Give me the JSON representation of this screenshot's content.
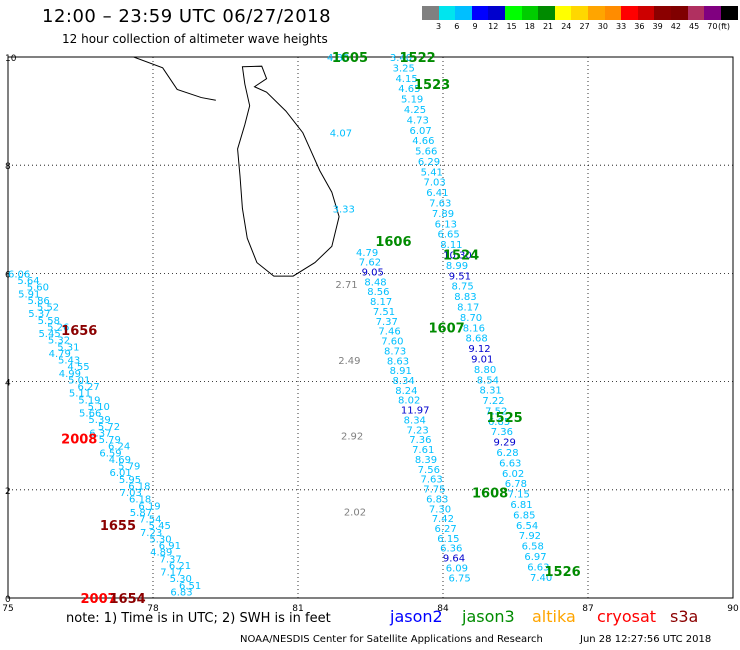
{
  "header": {
    "title": "12:00  –  23:59  UTC  06/27/2018",
    "subtitle": "12 hour collection of altimeter wave heights"
  },
  "color_legend": {
    "colors": [
      "#808080",
      "#00e5ee",
      "#00bfff",
      "#0000ff",
      "#0000cd",
      "#00ff00",
      "#00cd00",
      "#008b00",
      "#ffff00",
      "#ffd700",
      "#ffa500",
      "#ff8c00",
      "#ff0000",
      "#cd0000",
      "#8b0000",
      "#800000",
      "#b03060",
      "#800080",
      "#000000"
    ],
    "labels": [
      "",
      "3",
      "",
      "6",
      "",
      "9",
      "",
      "12",
      "",
      "15",
      "",
      "18",
      "",
      "21",
      "",
      "24",
      "",
      "27",
      "",
      "30",
      "",
      "33",
      "",
      "36",
      "",
      "39",
      "",
      "42",
      "",
      "45",
      "",
      "70"
    ],
    "tick_labels": [
      "3",
      "6",
      "9",
      "12",
      "15",
      "18",
      "21",
      "24",
      "27",
      "30",
      "33",
      "36",
      "39",
      "42",
      "45",
      "70"
    ],
    "unit": "(ft)"
  },
  "map_data": {
    "x_ticks": [
      "75",
      "78",
      "81",
      "84",
      "87",
      "90"
    ],
    "y_ticks": [
      "0",
      "2",
      "4",
      "6",
      "8",
      "10"
    ],
    "tracks": [
      {
        "sat": "jason3",
        "time": "1605",
        "lon": 81.6,
        "lat": 10.0,
        "values": [
          "4.30",
          "4.07",
          "3.33",
          "2.71",
          "2.49",
          "2.92",
          "2.02"
        ],
        "colors": [
          "cyan",
          "cyan",
          "cyan",
          "gray",
          "gray",
          "gray",
          "gray"
        ]
      },
      {
        "sat": "jason3",
        "time": "1522",
        "lon": 82.9,
        "lat": 10.0,
        "values": [
          "3.40",
          "3.25",
          "4.15",
          "4.65",
          "5.19",
          "4.25",
          "4.73",
          "6.07",
          "4.66",
          "5.66",
          "6.29",
          "5.41",
          "7.03",
          "6.41",
          "7.63",
          "7.89",
          "6.13",
          "6.65",
          "8.11",
          "10.30",
          "8.99",
          "9.51",
          "8.75",
          "8.83",
          "8.17",
          "8.70",
          "8.16",
          "8.68",
          "9.12",
          "9.01",
          "8.80",
          "8.54",
          "8.31",
          "7.22",
          "7.52",
          "6.85",
          "7.36",
          "9.29",
          "6.28",
          "6.63",
          "6.02",
          "6.78",
          "7.15",
          "6.81",
          "6.85",
          "6.54",
          "7.92",
          "6.58",
          "6.97",
          "6.63",
          "7.40"
        ]
      },
      {
        "sat": "jason3",
        "time": "1606",
        "lon": 82.2,
        "lat": 6.4,
        "values": [
          "4.79",
          "7.62",
          "9.05",
          "8.48",
          "8.56",
          "8.17",
          "7.51",
          "7.37",
          "7.46",
          "7.60",
          "8.73",
          "8.63",
          "8.91",
          "8.34",
          "8.24",
          "8.02",
          "11.97",
          "8.34",
          "7.23",
          "7.36",
          "7.61",
          "8.39",
          "7.56",
          "7.63",
          "7.75",
          "6.83",
          "7.30",
          "7.42",
          "6.27",
          "6.15",
          "6.36",
          "9.64",
          "6.09",
          "6.75"
        ]
      },
      {
        "sat": "s3a",
        "time": "1656",
        "lon": 75.0,
        "lat": 6.0,
        "values": [
          "6.06",
          "5.64",
          "5.60",
          "5.91",
          "5.86",
          "5.52",
          "5.37",
          "5.58",
          "5.26",
          "5.45",
          "5.32",
          "5.31",
          "4.79",
          "5.43",
          "4.55",
          "4.99",
          "5.01",
          "6.27",
          "5.11",
          "5.19",
          "5.10",
          "5.66",
          "5.39",
          "5.72",
          "6.37",
          "5.79",
          "6.24",
          "6.59",
          "4.69",
          "5.79",
          "6.01",
          "5.95",
          "6.18",
          "7.03",
          "6.18",
          "6.19",
          "5.87",
          "7.54",
          "5.45",
          "7.23",
          "5.30",
          "6.91",
          "4.89",
          "7.37",
          "6.21",
          "7.17",
          "5.30",
          "6.51",
          "6.83"
        ]
      }
    ],
    "labels": [
      {
        "text": "1605",
        "color": "#008b00",
        "lon": 81.7,
        "lat": 10.0
      },
      {
        "text": "1522",
        "color": "#008b00",
        "lon": 83.1,
        "lat": 10.0
      },
      {
        "text": "1523",
        "color": "#008b00",
        "lon": 83.4,
        "lat": 9.5
      },
      {
        "text": "1606",
        "color": "#008b00",
        "lon": 82.6,
        "lat": 6.6
      },
      {
        "text": "1524",
        "color": "#008b00",
        "lon": 84.0,
        "lat": 6.35
      },
      {
        "text": "1607",
        "color": "#008b00",
        "lon": 83.7,
        "lat": 5.0
      },
      {
        "text": "1525",
        "color": "#008b00",
        "lon": 84.9,
        "lat": 3.35
      },
      {
        "text": "1608",
        "color": "#008b00",
        "lon": 84.6,
        "lat": 1.95
      },
      {
        "text": "1526",
        "color": "#008b00",
        "lon": 86.1,
        "lat": 0.5
      },
      {
        "text": "1656",
        "color": "#8b0000",
        "lon": 76.1,
        "lat": 4.95
      },
      {
        "text": "2008",
        "color": "#ff0000",
        "lon": 76.1,
        "lat": 2.95
      },
      {
        "text": "1655",
        "color": "#8b0000",
        "lon": 76.9,
        "lat": 1.35
      },
      {
        "text": "2007",
        "color": "#ff0000",
        "lon": 76.5,
        "lat": 0.0
      },
      {
        "text": "1654",
        "color": "#8b0000",
        "lon": 77.1,
        "lat": 0.0
      }
    ]
  },
  "footer": {
    "note": "note:  1) Time is in UTC;  2) SWH is in feet",
    "credit": "NOAA/NESDIS Center for Satellite Applications and Research",
    "timestamp": "Jun 28 12:27:56 UTC 2018",
    "satellites": [
      {
        "name": "jason2",
        "color": "#0000ff"
      },
      {
        "name": "jason3",
        "color": "#008b00"
      },
      {
        "name": "altika",
        "color": "#ffa500"
      },
      {
        "name": "cryosat",
        "color": "#ff0000"
      },
      {
        "name": "s3a",
        "color": "#8b0000"
      }
    ]
  }
}
